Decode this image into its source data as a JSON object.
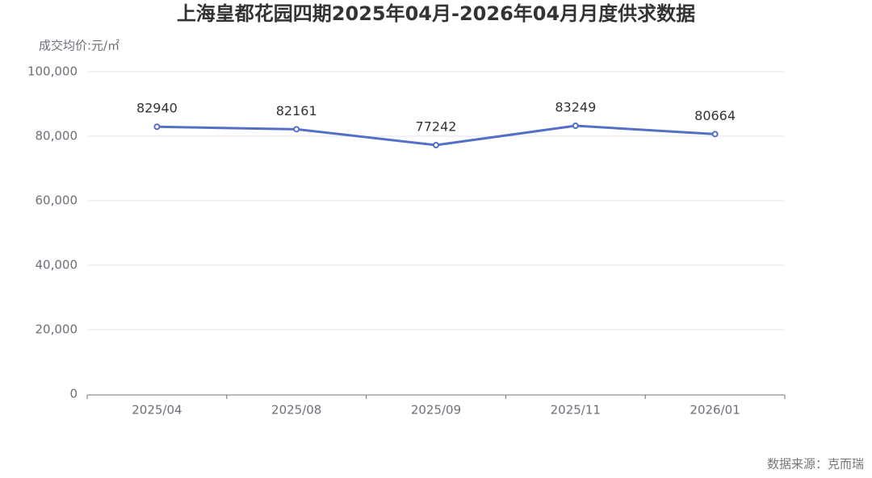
{
  "chart_data": {
    "type": "line",
    "title": "上海皇都花园四期2025年04月-2026年04月月度供求数据",
    "y_axis_label": "成交均价:元/㎡",
    "source": "数据来源：克而瑞",
    "categories": [
      "2025/04",
      "2025/08",
      "2025/09",
      "2025/11",
      "2026/01"
    ],
    "series": [
      {
        "name": "成交均价",
        "color": "#5470c6",
        "values": [
          82940,
          82161,
          77242,
          83249,
          80664
        ]
      }
    ],
    "ylim": [
      0,
      100000
    ],
    "yticks": [
      0,
      {
        "value": 20000,
        "label": "20,000"
      },
      {
        "value": 40000,
        "label": "40,000"
      },
      {
        "value": 60000,
        "label": "60,000"
      },
      {
        "value": 80000,
        "label": "80,000"
      },
      {
        "value": 100000,
        "label": "100,000"
      }
    ],
    "grid": true
  }
}
